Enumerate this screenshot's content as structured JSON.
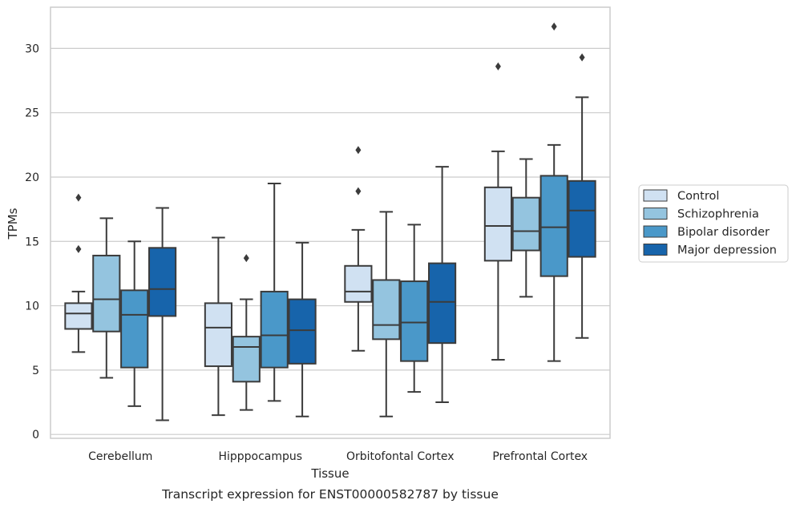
{
  "caption": "Transcript expression for ENST00000582787 by tissue",
  "chart_data": {
    "type": "boxplot",
    "xlabel": "Tissue",
    "ylabel": "TPMs",
    "ylim": [
      -0.3,
      33.2
    ],
    "yticks": [
      0,
      5,
      10,
      15,
      20,
      25,
      30
    ],
    "grid": "horizontal",
    "legend_position": "right",
    "categories": [
      "Cerebellum",
      "Hipppocampus",
      "Orbitofontal Cortex",
      "Prefrontal Cortex"
    ],
    "series": [
      {
        "name": "Control",
        "color": "#d0e1f2",
        "boxes": [
          {
            "whisker_low": 6.4,
            "q1": 8.2,
            "median": 9.4,
            "q3": 10.2,
            "whisker_high": 11.1,
            "outliers": [
              14.4,
              18.4
            ]
          },
          {
            "whisker_low": 1.5,
            "q1": 5.3,
            "median": 8.3,
            "q3": 10.2,
            "whisker_high": 15.3,
            "outliers": []
          },
          {
            "whisker_low": 6.5,
            "q1": 10.3,
            "median": 11.1,
            "q3": 13.1,
            "whisker_high": 15.9,
            "outliers": [
              18.9,
              22.1
            ]
          },
          {
            "whisker_low": 5.8,
            "q1": 13.5,
            "median": 16.2,
            "q3": 19.2,
            "whisker_high": 22.0,
            "outliers": [
              28.6
            ]
          }
        ]
      },
      {
        "name": "Schizophrenia",
        "color": "#94c4df",
        "boxes": [
          {
            "whisker_low": 4.4,
            "q1": 8.0,
            "median": 10.5,
            "q3": 13.9,
            "whisker_high": 16.8,
            "outliers": []
          },
          {
            "whisker_low": 1.9,
            "q1": 4.1,
            "median": 6.8,
            "q3": 7.6,
            "whisker_high": 10.5,
            "outliers": [
              13.7
            ]
          },
          {
            "whisker_low": 1.4,
            "q1": 7.4,
            "median": 8.5,
            "q3": 12.0,
            "whisker_high": 17.3,
            "outliers": []
          },
          {
            "whisker_low": 10.7,
            "q1": 14.3,
            "median": 15.8,
            "q3": 18.4,
            "whisker_high": 21.4,
            "outliers": []
          }
        ]
      },
      {
        "name": "Bipolar disorder",
        "color": "#4a98c9",
        "boxes": [
          {
            "whisker_low": 2.2,
            "q1": 5.2,
            "median": 9.3,
            "q3": 11.2,
            "whisker_high": 15.0,
            "outliers": []
          },
          {
            "whisker_low": 2.6,
            "q1": 5.2,
            "median": 7.7,
            "q3": 11.1,
            "whisker_high": 19.5,
            "outliers": []
          },
          {
            "whisker_low": 3.3,
            "q1": 5.7,
            "median": 8.7,
            "q3": 11.9,
            "whisker_high": 16.3,
            "outliers": []
          },
          {
            "whisker_low": 5.7,
            "q1": 12.3,
            "median": 16.1,
            "q3": 20.1,
            "whisker_high": 22.5,
            "outliers": [
              31.7
            ]
          }
        ]
      },
      {
        "name": "Major depression",
        "color": "#1764ab",
        "boxes": [
          {
            "whisker_low": 1.1,
            "q1": 9.2,
            "median": 11.3,
            "q3": 14.5,
            "whisker_high": 17.6,
            "outliers": []
          },
          {
            "whisker_low": 1.4,
            "q1": 5.5,
            "median": 8.1,
            "q3": 10.5,
            "whisker_high": 14.9,
            "outliers": []
          },
          {
            "whisker_low": 2.5,
            "q1": 7.1,
            "median": 10.3,
            "q3": 13.3,
            "whisker_high": 20.8,
            "outliers": []
          },
          {
            "whisker_low": 7.5,
            "q1": 13.8,
            "median": 17.4,
            "q3": 19.7,
            "whisker_high": 26.2,
            "outliers": [
              29.3
            ]
          }
        ]
      }
    ]
  }
}
